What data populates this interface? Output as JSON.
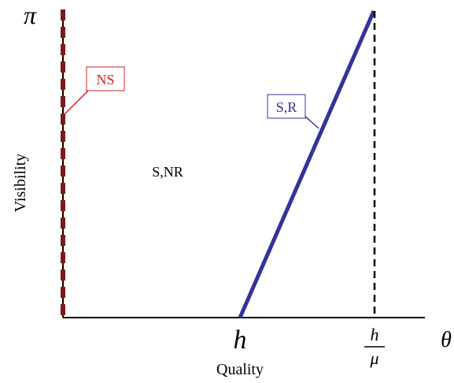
{
  "axes": {
    "y_top_label": "π",
    "x_right_label": "θ",
    "y_axis_title": "Visibility",
    "x_axis_title": "Quality"
  },
  "ticks": {
    "h_label": "h",
    "frac_numerator": "h",
    "frac_denominator": "μ"
  },
  "regions": {
    "ns_label": "NS",
    "snr_label": "S,NR",
    "sr_label": "S,R"
  },
  "colors": {
    "ns": "#d62020",
    "ns_dark": "#7a1a1a",
    "sr": "#333399",
    "axis": "#000000"
  }
}
